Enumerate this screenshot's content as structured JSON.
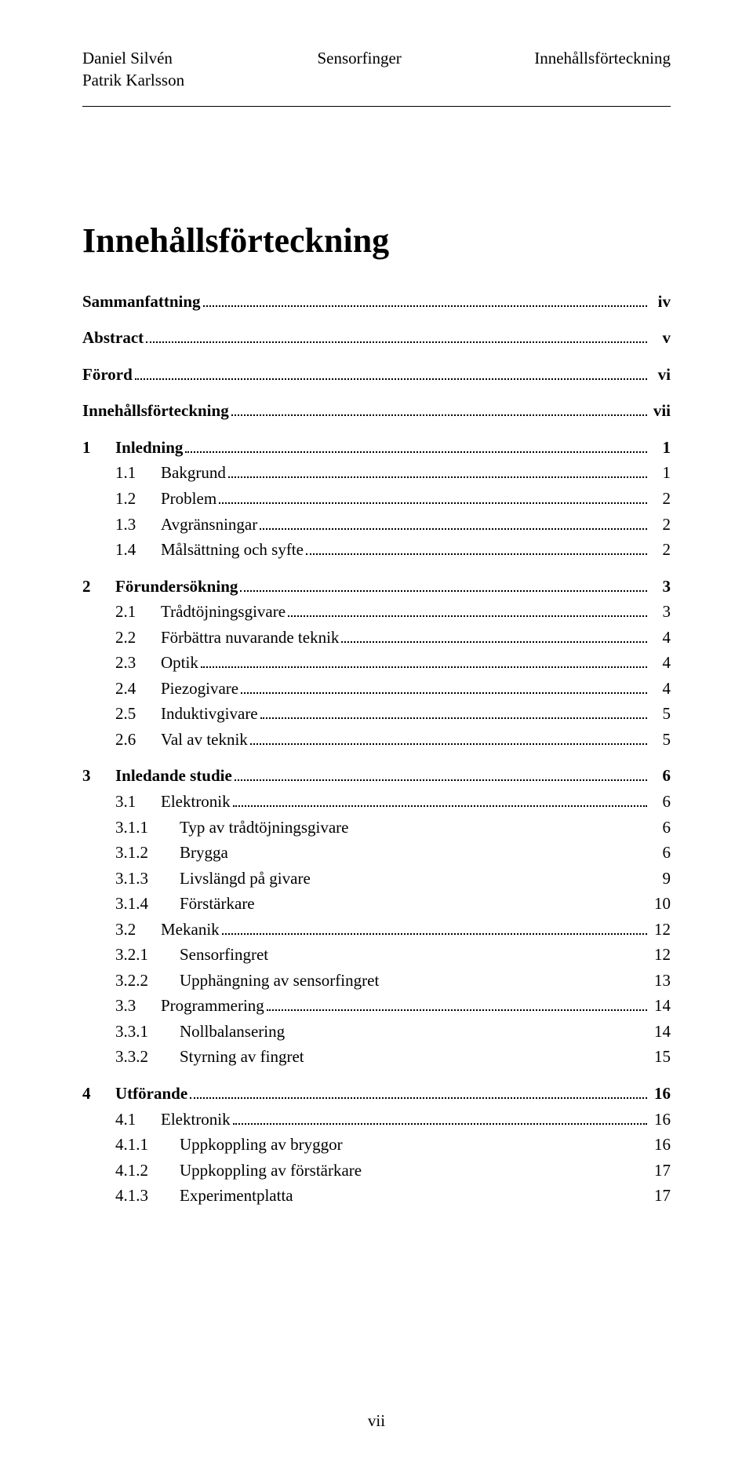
{
  "header": {
    "author1": "Daniel Silvén",
    "author2": "Patrik Karlsson",
    "center": "Sensorfinger",
    "right": "Innehållsförteckning"
  },
  "title": "Innehållsförteckning",
  "frontmatter": [
    {
      "label": "Sammanfattning",
      "page": "iv",
      "bold": true
    },
    {
      "label": "Abstract",
      "page": "v",
      "bold": true
    },
    {
      "label": "Förord",
      "page": "vi",
      "bold": true
    },
    {
      "label": "Innehållsförteckning",
      "page": "vii",
      "bold": true
    }
  ],
  "sections": [
    {
      "num": "1",
      "label": "Inledning",
      "page": "1",
      "bold": true,
      "children": [
        {
          "num": "1.1",
          "label": "Bakgrund",
          "page": "1"
        },
        {
          "num": "1.2",
          "label": "Problem",
          "page": "2"
        },
        {
          "num": "1.3",
          "label": "Avgränsningar",
          "page": "2"
        },
        {
          "num": "1.4",
          "label": "Målsättning och syfte",
          "page": "2"
        }
      ]
    },
    {
      "num": "2",
      "label": "Förundersökning",
      "page": "3",
      "bold": true,
      "children": [
        {
          "num": "2.1",
          "label": "Trådtöjningsgivare",
          "page": "3"
        },
        {
          "num": "2.2",
          "label": "Förbättra nuvarande teknik",
          "page": "4"
        },
        {
          "num": "2.3",
          "label": "Optik",
          "page": "4"
        },
        {
          "num": "2.4",
          "label": "Piezogivare",
          "page": "4"
        },
        {
          "num": "2.5",
          "label": "Induktivgivare",
          "page": "5"
        },
        {
          "num": "2.6",
          "label": "Val av teknik",
          "page": "5"
        }
      ]
    },
    {
      "num": "3",
      "label": "Inledande studie",
      "page": "6",
      "bold": true,
      "children": [
        {
          "num": "3.1",
          "label": "Elektronik",
          "page": "6",
          "children": [
            {
              "num": "3.1.1",
              "label": "Typ av trådtöjningsgivare",
              "page": "6",
              "noleader": true
            },
            {
              "num": "3.1.2",
              "label": "Brygga",
              "page": "6",
              "noleader": true
            },
            {
              "num": "3.1.3",
              "label": "Livslängd på givare",
              "page": "9",
              "noleader": true
            },
            {
              "num": "3.1.4",
              "label": "Förstärkare",
              "page": "10",
              "noleader": true
            }
          ]
        },
        {
          "num": "3.2",
          "label": "Mekanik",
          "page": "12",
          "children": [
            {
              "num": "3.2.1",
              "label": "Sensorfingret",
              "page": "12",
              "noleader": true
            },
            {
              "num": "3.2.2",
              "label": "Upphängning av sensorfingret",
              "page": "13",
              "noleader": true
            }
          ]
        },
        {
          "num": "3.3",
          "label": "Programmering",
          "page": "14",
          "children": [
            {
              "num": "3.3.1",
              "label": "Nollbalansering",
              "page": "14",
              "noleader": true
            },
            {
              "num": "3.3.2",
              "label": "Styrning av fingret",
              "page": "15",
              "noleader": true
            }
          ]
        }
      ]
    },
    {
      "num": "4",
      "label": "Utförande",
      "page": "16",
      "bold": true,
      "children": [
        {
          "num": "4.1",
          "label": "Elektronik",
          "page": "16",
          "children": [
            {
              "num": "4.1.1",
              "label": "Uppkoppling av bryggor",
              "page": "16",
              "noleader": true
            },
            {
              "num": "4.1.2",
              "label": "Uppkoppling av förstärkare",
              "page": "17",
              "noleader": true
            },
            {
              "num": "4.1.3",
              "label": "Experimentplatta",
              "page": "17",
              "noleader": true
            }
          ]
        }
      ]
    }
  ],
  "footer": "vii"
}
